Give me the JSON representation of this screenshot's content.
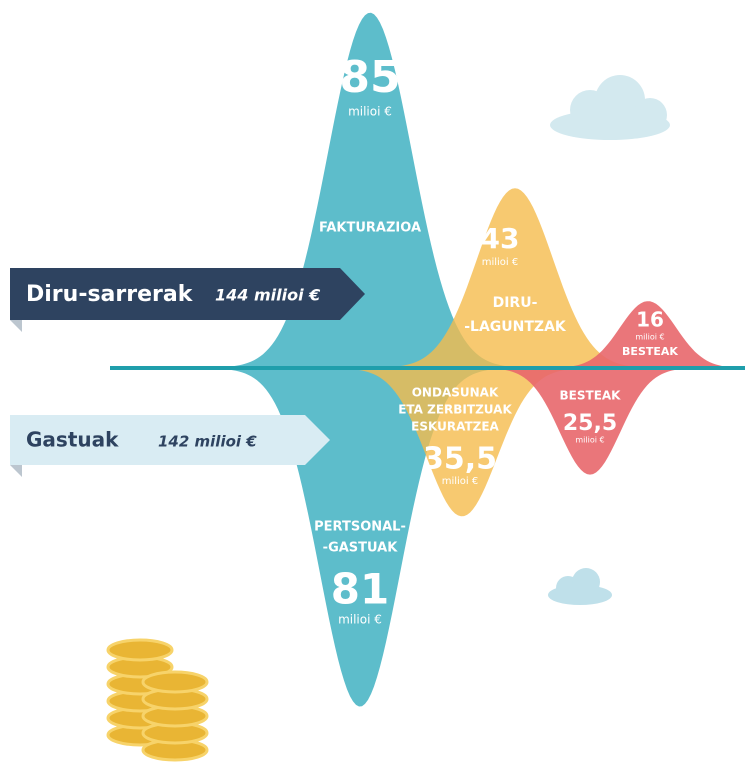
{
  "income": {
    "title": "Diru-sarrerak",
    "total": "144 milioi €",
    "items": [
      {
        "name": [
          "FAKTURAZIOA"
        ],
        "value": 85,
        "unit": "milioi €"
      },
      {
        "name": [
          "DIRU-",
          "-LAGUNTZAK"
        ],
        "value": 43,
        "unit": "milioi €"
      },
      {
        "name": [
          "BESTEAK"
        ],
        "value": 16,
        "unit": "milioi €"
      }
    ]
  },
  "spending": {
    "title": "Gastuak",
    "total": "142 milioi €",
    "items": [
      {
        "name": [
          "PERTSONAL-",
          "-GASTUAK"
        ],
        "value": 81,
        "unit": "milioi €"
      },
      {
        "name": [
          "ONDASUNAK",
          "ETA ZERBITZUAK",
          "ESKURATZEA"
        ],
        "value": 35.5,
        "value_label": "35,5",
        "unit": "milioi €"
      },
      {
        "name": [
          "BESTEAK"
        ],
        "value": 25.5,
        "value_label": "25,5",
        "unit": "milioi €"
      }
    ]
  }
}
